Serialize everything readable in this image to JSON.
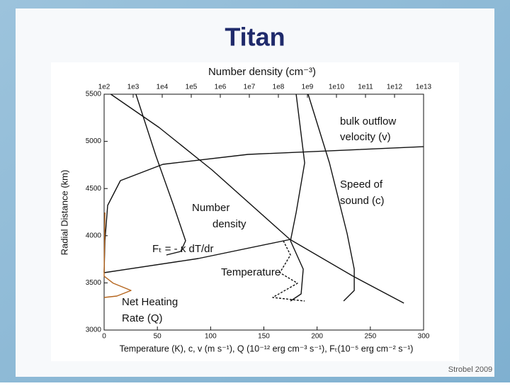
{
  "title": "Titan",
  "credit": "Strobel 2009",
  "chart_data": {
    "type": "line",
    "top_axis_label": "Number density (cm⁻³)",
    "ylabel": "Radial Distance (km)",
    "xlabel": "Temperature (K), c, v (m s⁻¹), Q (10⁻¹² erg cm⁻³ s⁻¹), Fₜ(10⁻⁵ erg cm⁻² s⁻¹)",
    "xlim": [
      0,
      300
    ],
    "xticks": [
      0,
      50,
      100,
      150,
      200,
      250,
      300
    ],
    "x2lim": [
      100,
      10000000000000
    ],
    "x2log": true,
    "x2ticks": [
      {
        "value": 100,
        "label": "1e2"
      },
      {
        "value": 1000,
        "label": "1e3"
      },
      {
        "value": 10000,
        "label": "1e4"
      },
      {
        "value": 100000,
        "label": "1e5"
      },
      {
        "value": 1000000,
        "label": "1e6"
      },
      {
        "value": 10000000,
        "label": "1e7"
      },
      {
        "value": 100000000,
        "label": "1e8"
      },
      {
        "value": 1000000000,
        "label": "1e9"
      },
      {
        "value": 10000000000,
        "label": "1e10"
      },
      {
        "value": 100000000000,
        "label": "1e11"
      },
      {
        "value": 1000000000000,
        "label": "1e12"
      },
      {
        "value": 10000000000000,
        "label": "1e13"
      }
    ],
    "ylim": [
      3000,
      5500
    ],
    "yticks": [
      3000,
      3500,
      4000,
      4500,
      5000,
      5500
    ],
    "series": [
      {
        "color": "#111111",
        "x": [
          0,
          0.7,
          3.3,
          15.3,
          55.2,
          135.1,
          300
        ],
        "values": [
          3608,
          3946,
          4321,
          4584,
          4757,
          4862,
          4944
        ]
      },
      {
        "color": "#111111",
        "x": [
          0,
          88.5,
          175
        ],
        "values": [
          3608,
          3758,
          3961
        ]
      },
      {
        "color": "#111111",
        "axis": "x2",
        "x": [
          170,
          7800,
          520000,
          250000000,
          37000000000,
          2100000000000
        ],
        "values": [
          5500,
          5147,
          4697,
          3961,
          3571,
          3285
        ]
      },
      {
        "color": "#111111",
        "x": [
          29.9,
          48.6,
          65.2,
          76.5,
          71.9,
          58.5
        ],
        "values": [
          5500,
          4847,
          4321,
          3946,
          3833,
          3796
        ]
      },
      {
        "color": "#111111",
        "x": [
          180.3,
          188.3,
          180.3,
          175,
          187,
          185,
          175
        ],
        "values": [
          5500,
          4772,
          4246,
          3946,
          3646,
          3383,
          3308
        ]
      },
      {
        "color": "#111111",
        "x": [
          191.6,
          211.6,
          228.2,
          234.9,
          234.9,
          224.9
        ],
        "values": [
          5500,
          4772,
          4021,
          3646,
          3420,
          3308
        ]
      },
      {
        "color": "#b5651d",
        "x": [
          0.7,
          0,
          8.6,
          25.3,
          12,
          0
        ],
        "values": [
          4246,
          3571,
          3496,
          3420,
          3360,
          3345
        ]
      },
      {
        "color": "#111111",
        "dash": true,
        "x": [
          168.3,
          175,
          165,
          181.6,
          158.3,
          188.3
        ],
        "values": [
          3946,
          3796,
          3608,
          3496,
          3345,
          3308
        ]
      }
    ],
    "annotations": [
      "bulk outflow",
      "velocity (v)",
      "Speed of",
      "sound (c)",
      "Number",
      "density",
      "Fₜ = - κ dT/dr",
      "Temperature",
      "Net Heating",
      "Rate (Q)"
    ]
  }
}
